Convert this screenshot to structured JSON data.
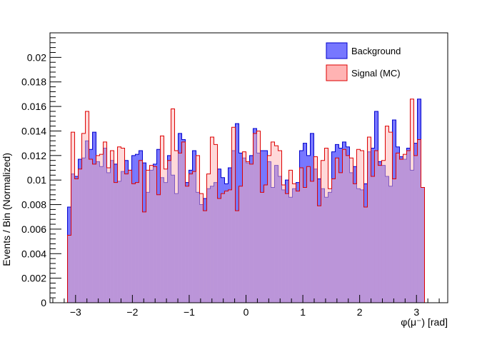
{
  "chart_data": {
    "type": "histogram",
    "title": "",
    "xlabel": "φ(μ⁻) [rad]",
    "ylabel": "Events / Bin (Normalized)",
    "xlim": [
      -3.45,
      3.55
    ],
    "ylim": [
      0,
      0.022
    ],
    "bin_range": [
      -3.1416,
      3.1416
    ],
    "bins": 100,
    "x_ticks": [
      -3,
      -2,
      -1,
      0,
      1,
      2,
      3
    ],
    "x_tick_labels": [
      "−3",
      "−2",
      "−1",
      "0",
      "1",
      "2",
      "3"
    ],
    "y_ticks": [
      0,
      0.002,
      0.004,
      0.006,
      0.008,
      0.01,
      0.012,
      0.014,
      0.016,
      0.018,
      0.02
    ],
    "y_tick_labels": [
      "0",
      "0.002",
      "0.004",
      "0.006",
      "0.008",
      "0.01",
      "0.012",
      "0.014",
      "0.016",
      "0.018",
      "0.02"
    ],
    "grid": false,
    "legend_position": "top-right",
    "series": [
      {
        "name": "Background",
        "fill": "#7777ff",
        "line": "#0000cc",
        "values": [
          0.0078,
          0.0105,
          0.0103,
          0.0117,
          0.0118,
          0.0132,
          0.0125,
          0.0139,
          0.0115,
          0.0111,
          0.0126,
          0.0106,
          0.0116,
          0.0113,
          0.0099,
          0.0107,
          0.0116,
          0.0108,
          0.012,
          0.0121,
          0.0124,
          0.0114,
          0.009,
          0.0108,
          0.0113,
          0.0125,
          0.0102,
          0.0098,
          0.012,
          0.0104,
          0.0089,
          0.0138,
          0.0133,
          0.0098,
          0.0108,
          0.0124,
          0.009,
          0.008,
          0.0085,
          0.0093,
          0.0095,
          0.0098,
          0.0109,
          0.0102,
          0.0097,
          0.011,
          0.0124,
          0.0146,
          0.0122,
          0.0118,
          0.0114,
          0.012,
          0.0142,
          0.0122,
          0.0124,
          0.0124,
          0.0115,
          0.0094,
          0.0112,
          0.0103,
          0.0092,
          0.01,
          0.0086,
          0.0093,
          0.0098,
          0.0124,
          0.013,
          0.012,
          0.0138,
          0.0109,
          0.0101,
          0.0093,
          0.0086,
          0.009,
          0.0123,
          0.0129,
          0.0126,
          0.0131,
          0.0127,
          0.0106,
          0.0111,
          0.0093,
          0.0092,
          0.0097,
          0.0123,
          0.0126,
          0.0156,
          0.0115,
          0.0112,
          0.0103,
          0.0095,
          0.0149,
          0.0127,
          0.0119,
          0.0117,
          0.0126,
          0.0108,
          0.013,
          0.0166,
          0.0094
        ]
      },
      {
        "name": "Signal (MC)",
        "fill": "#ffb3b3",
        "line": "#dd0000",
        "values": [
          0.0055,
          0.0139,
          0.0101,
          0.0109,
          0.0138,
          0.0156,
          0.0117,
          0.0113,
          0.012,
          0.0121,
          0.0131,
          0.011,
          0.0124,
          0.0098,
          0.0127,
          0.0126,
          0.0105,
          0.0108,
          0.0097,
          0.0098,
          0.0116,
          0.0074,
          0.0108,
          0.0112,
          0.0111,
          0.0088,
          0.0136,
          0.0109,
          0.0116,
          0.0158,
          0.0124,
          0.0122,
          0.0131,
          0.0095,
          0.0105,
          0.0107,
          0.012,
          0.0089,
          0.0075,
          0.0105,
          0.0135,
          0.0129,
          0.0085,
          0.0089,
          0.0091,
          0.0092,
          0.0143,
          0.0075,
          0.0095,
          0.0123,
          0.0115,
          0.0113,
          0.0138,
          0.014,
          0.009,
          0.0096,
          0.012,
          0.0131,
          0.0128,
          0.0124,
          0.0096,
          0.0089,
          0.0108,
          0.0097,
          0.0091,
          0.011,
          0.0094,
          0.0111,
          0.0099,
          0.0119,
          0.0079,
          0.0116,
          0.0126,
          0.0093,
          0.0101,
          0.0118,
          0.0106,
          0.0125,
          0.012,
          0.0118,
          0.0097,
          0.0125,
          0.0124,
          0.0078,
          0.0135,
          0.0103,
          0.0124,
          0.0112,
          0.0116,
          0.0144,
          0.0139,
          0.0101,
          0.0122,
          0.0117,
          0.0121,
          0.0124,
          0.0166,
          0.012,
          0.0133,
          0.0094
        ]
      }
    ]
  }
}
